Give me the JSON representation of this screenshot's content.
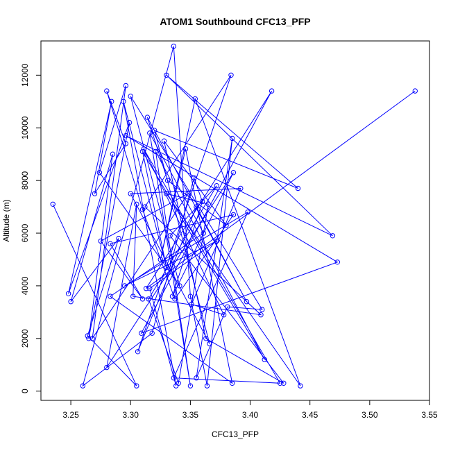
{
  "chart_data": {
    "type": "scatter",
    "title": "ATOM1 Southbound CFC13_PFP",
    "xlabel": "CFC13_PFP",
    "ylabel": "Altitude (m)",
    "xlim": [
      3.225,
      3.55
    ],
    "ylim": [
      -350,
      13300
    ],
    "x_ticks": [
      3.25,
      3.3,
      3.35,
      3.4,
      3.45,
      3.5,
      3.55
    ],
    "x_tick_labels": [
      "3.25",
      "3.30",
      "3.35",
      "3.40",
      "3.45",
      "3.50",
      "3.55"
    ],
    "y_ticks": [
      0,
      2000,
      4000,
      6000,
      8000,
      10000,
      12000
    ],
    "y_tick_labels": [
      "0",
      "2000",
      "4000",
      "6000",
      "8000",
      "10000",
      "12000"
    ],
    "grid": false,
    "legend": "none",
    "series_color": "#0000ff",
    "marker": "open-circle",
    "connected": true,
    "series": [
      {
        "x": [
          3.235,
          3.305,
          3.264,
          3.29,
          3.25,
          3.285,
          3.265,
          3.299,
          3.248,
          3.284,
          3.27,
          3.296,
          3.28,
          3.31,
          3.337,
          3.386,
          3.283,
          3.31,
          3.275,
          3.348,
          3.268,
          3.296,
          3.274,
          3.341,
          3.3,
          3.41,
          3.381,
          3.355,
          3.385,
          3.364,
          3.35,
          3.336,
          3.26,
          3.318,
          3.353,
          3.36,
          3.335,
          3.386,
          3.28,
          3.305,
          3.302,
          3.409,
          3.312,
          3.384,
          3.306,
          3.355,
          3.397,
          3.314,
          3.331,
          3.38,
          3.328,
          3.363,
          3.428,
          3.333,
          3.372,
          3.315,
          3.34,
          3.365,
          3.33,
          3.442,
          3.354,
          3.325,
          3.346,
          3.385,
          3.283,
          3.361,
          3.316,
          3.35,
          3.321,
          3.412,
          3.31,
          3.33,
          3.294,
          3.338,
          3.316,
          3.372,
          3.295,
          3.398,
          3.336,
          3.425,
          3.311,
          3.378,
          3.351,
          3.392,
          3.3,
          3.366,
          3.32,
          3.44,
          3.33,
          3.469,
          3.296,
          3.473,
          3.309,
          3.418,
          3.313,
          3.538
        ],
        "y": [
          7100,
          200,
          2100,
          5800,
          3400,
          9000,
          2000,
          10200,
          3700,
          11000,
          7500,
          9400,
          11400,
          6900,
          3500,
          6700,
          5600,
          3500,
          5700,
          7500,
          2000,
          11600,
          8300,
          4000,
          11200,
          3100,
          3200,
          500,
          9600,
          200,
          3600,
          13100,
          200,
          2200,
          8100,
          7200,
          3600,
          8300,
          900,
          7100,
          3600,
          2900,
          7000,
          12000,
          1500,
          7000,
          3400,
          10400,
          8000,
          6300,
          9500,
          2000,
          300,
          5900,
          7800,
          3500,
          300,
          7100,
          7500,
          200,
          11100,
          5000,
          9200,
          300,
          3600,
          6000,
          9800,
          200,
          9100,
          1200,
          9100,
          4700,
          11000,
          200,
          3900,
          5700,
          4000,
          6800,
          500,
          300,
          9200,
          2900,
          3300,
          7700,
          7500,
          1800,
          9900,
          7700,
          12000,
          5900,
          9700,
          4900,
          2200,
          11400,
          3900,
          11400
        ]
      }
    ]
  }
}
